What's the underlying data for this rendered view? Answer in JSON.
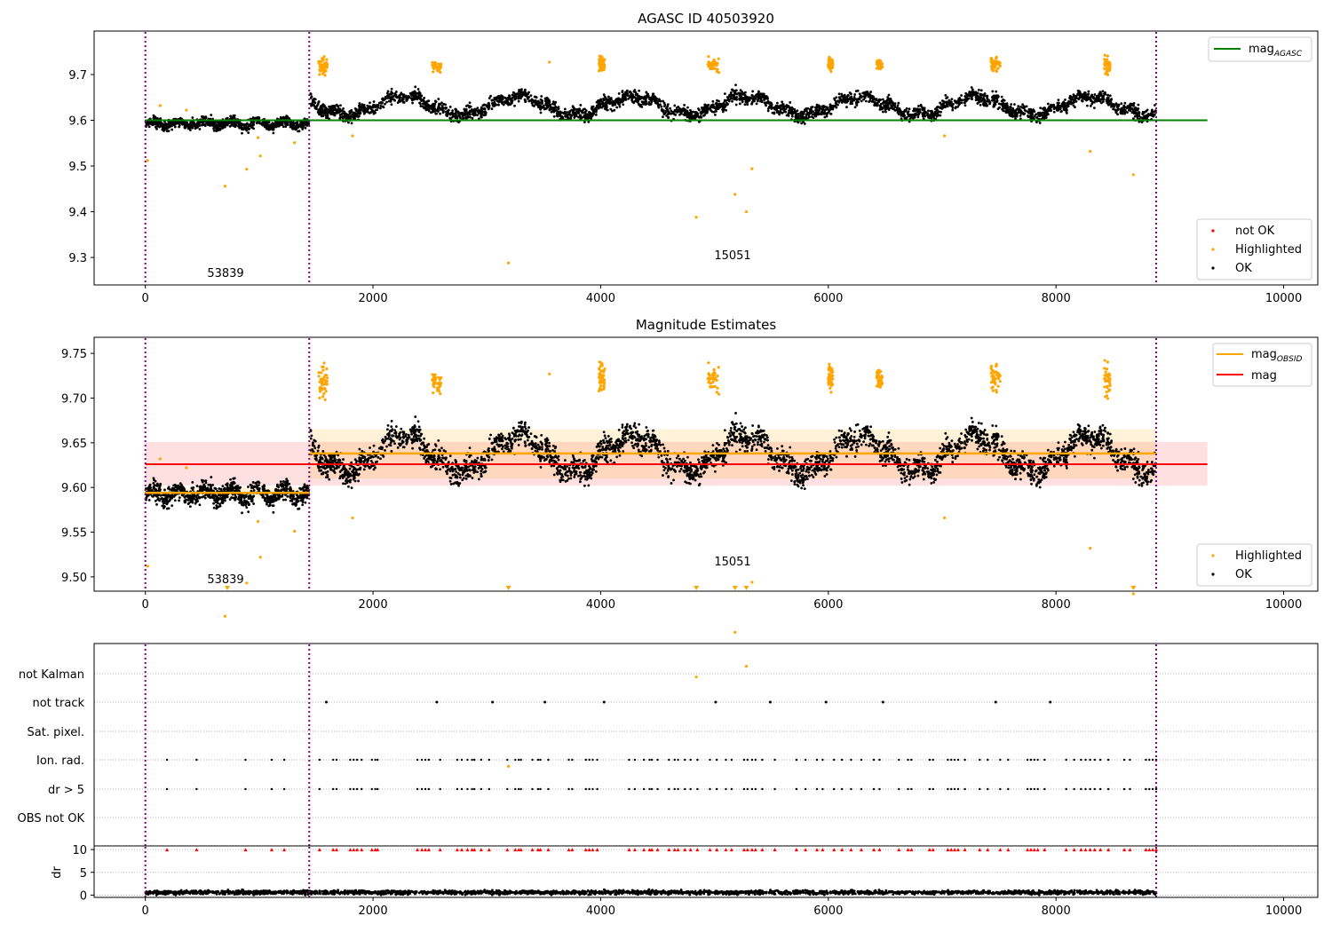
{
  "chart_data": [
    {
      "type": "scatter",
      "title": "AGASC ID 40503920",
      "xlim": [
        -450,
        10300
      ],
      "ylim": [
        9.24,
        9.795
      ],
      "xticks": [
        0,
        2000,
        4000,
        6000,
        8000,
        10000
      ],
      "yticks": [
        9.3,
        9.4,
        9.5,
        9.6,
        9.7
      ],
      "vlines": [
        0,
        1440,
        8880
      ],
      "obsid_labels": [
        {
          "text": "53839",
          "x": 720,
          "y": 9.26
        },
        {
          "text": "15051",
          "x": 5160,
          "y": 9.3
        }
      ],
      "reference_lines": [
        {
          "name": "mag_AGASC",
          "value": 9.6,
          "x": [
            0,
            9330
          ],
          "color": "#008000"
        }
      ],
      "legend_top": [
        {
          "label": "mag",
          "subscript": "AGASC",
          "color": "#008000"
        }
      ],
      "legend_bottom": [
        {
          "label": "not OK",
          "color": "#ff0000"
        },
        {
          "label": "Highlighted",
          "color": "#ffa500"
        },
        {
          "label": "OK",
          "color": "#000000"
        }
      ],
      "highlighted_points": [
        [
          20,
          9.512
        ],
        [
          130,
          9.632
        ],
        [
          360,
          9.622
        ],
        [
          700,
          9.456
        ],
        [
          890,
          9.493
        ],
        [
          1010,
          9.522
        ],
        [
          990,
          9.562
        ],
        [
          1310,
          9.551
        ],
        [
          1820,
          9.566
        ],
        [
          3190,
          9.288
        ],
        [
          3550,
          9.727
        ],
        [
          4840,
          9.388
        ],
        [
          5180,
          9.438
        ],
        [
          5280,
          9.4
        ],
        [
          5330,
          9.494
        ],
        [
          7020,
          9.566
        ],
        [
          8300,
          9.532
        ],
        [
          8680,
          9.481
        ]
      ],
      "highlighted_clusters": [
        {
          "x_center": 1560,
          "x_spread": 40,
          "y_center": 9.72,
          "y_spread": 0.025
        },
        {
          "x_center": 2560,
          "x_spread": 40,
          "y_center": 9.718,
          "y_spread": 0.015
        },
        {
          "x_center": 4010,
          "x_spread": 25,
          "y_center": 9.722,
          "y_spread": 0.02
        },
        {
          "x_center": 4990,
          "x_spread": 50,
          "y_center": 9.722,
          "y_spread": 0.02
        },
        {
          "x_center": 6020,
          "x_spread": 20,
          "y_center": 9.723,
          "y_spread": 0.015
        },
        {
          "x_center": 6450,
          "x_spread": 25,
          "y_center": 9.72,
          "y_spread": 0.012
        },
        {
          "x_center": 7470,
          "x_spread": 40,
          "y_center": 9.722,
          "y_spread": 0.02
        },
        {
          "x_center": 8450,
          "x_spread": 25,
          "y_center": 9.72,
          "y_spread": 0.02
        }
      ],
      "ok_segments": [
        {
          "x_start": 0,
          "x_end": 1440,
          "baseline": 9.593,
          "amplitude": 0,
          "scatter": 0.009
        },
        {
          "x_start": 1450,
          "x_end": 8880,
          "baseline": 9.632,
          "amplitude": 0.02,
          "scatter": 0.012
        }
      ]
    },
    {
      "type": "scatter",
      "title": "Magnitude Estimates",
      "xlim": [
        -450,
        10300
      ],
      "ylim": [
        9.484,
        9.768
      ],
      "xticks": [
        0,
        2000,
        4000,
        6000,
        8000,
        10000
      ],
      "yticks": [
        9.5,
        9.55,
        9.6,
        9.65,
        9.7,
        9.75
      ],
      "vlines": [
        0,
        1440,
        8880
      ],
      "obsid_labels": [
        {
          "text": "53839",
          "x": 720,
          "y": 9.496
        },
        {
          "text": "15051",
          "x": 5160,
          "y": 9.515
        }
      ],
      "mag_line": {
        "name": "mag",
        "value": 9.626,
        "band": [
          9.602,
          9.651
        ],
        "x": [
          0,
          9330
        ],
        "color": "#ff0000"
      },
      "obsid_mags": [
        {
          "x": [
            0,
            1440
          ],
          "value": 9.594,
          "band": [
            9.588,
            9.6
          ]
        },
        {
          "x": [
            1440,
            8880
          ],
          "value": 9.638,
          "band": [
            9.61,
            9.665
          ]
        }
      ],
      "legend_top": [
        {
          "label": "mag",
          "subscript": "OBSID",
          "color": "#ffa500"
        },
        {
          "label": "mag",
          "subscript": "",
          "color": "#ff0000"
        }
      ],
      "legend_bottom": [
        {
          "label": "Highlighted",
          "color": "#ffa500"
        },
        {
          "label": "OK",
          "color": "#000000"
        }
      ],
      "lower_limit_markers": [
        720,
        3190,
        4840,
        5180,
        5280,
        8680
      ]
    },
    {
      "type": "scatter",
      "categories": [
        "not Kalman",
        "not track",
        "Sat. pixel.",
        "Ion. rad.",
        "dr > 5",
        "OBS not OK"
      ],
      "xlim": [
        -450,
        10300
      ],
      "vlines": [
        0,
        1440,
        8880
      ],
      "not_track_x": [
        1590,
        2560,
        3050,
        3510,
        4030,
        5010,
        5490,
        5980,
        6480,
        7470,
        7950
      ],
      "ion_rad_x": [
        190,
        450,
        880,
        1110,
        1220,
        1530,
        1650,
        1680,
        1800,
        1830,
        1860,
        1900,
        1990,
        2020,
        2040,
        2390,
        2430,
        2460,
        2490,
        2590,
        2740,
        2780,
        2830,
        2870,
        2890,
        2950,
        3020,
        3180,
        3250,
        3280,
        3300,
        3400,
        3450,
        3470,
        3540,
        3720,
        3750,
        3870,
        3900,
        3930,
        3970,
        4250,
        4300,
        4380,
        4430,
        4450,
        4500,
        4600,
        4650,
        4680,
        4740,
        4790,
        4850,
        4960,
        5020,
        5100,
        5150,
        5260,
        5290,
        5330,
        5360,
        5420,
        5530,
        5720,
        5800,
        5900,
        5950,
        6050,
        6120,
        6200,
        6290,
        6400,
        6450,
        6620,
        6700,
        6730,
        6890,
        6920,
        7050,
        7080,
        7110,
        7140,
        7200,
        7330,
        7400,
        7510,
        7580,
        7750,
        7780,
        7810,
        7840,
        7900,
        8090,
        8160,
        8220,
        8260,
        8300,
        8340,
        8390,
        8460,
        8600,
        8650,
        8790,
        8820,
        8850,
        8880
      ]
    },
    {
      "type": "scatter",
      "ylabel": "dr",
      "xlim": [
        -450,
        10300
      ],
      "ylim": [
        -0.5,
        10.8
      ],
      "xticks": [
        0,
        2000,
        4000,
        6000,
        8000,
        10000
      ],
      "yticks": [
        0,
        5,
        10
      ],
      "vlines": [
        0,
        1440,
        8880
      ],
      "dr_baseline": 0.6,
      "dr_clipped_value": 10
    }
  ]
}
